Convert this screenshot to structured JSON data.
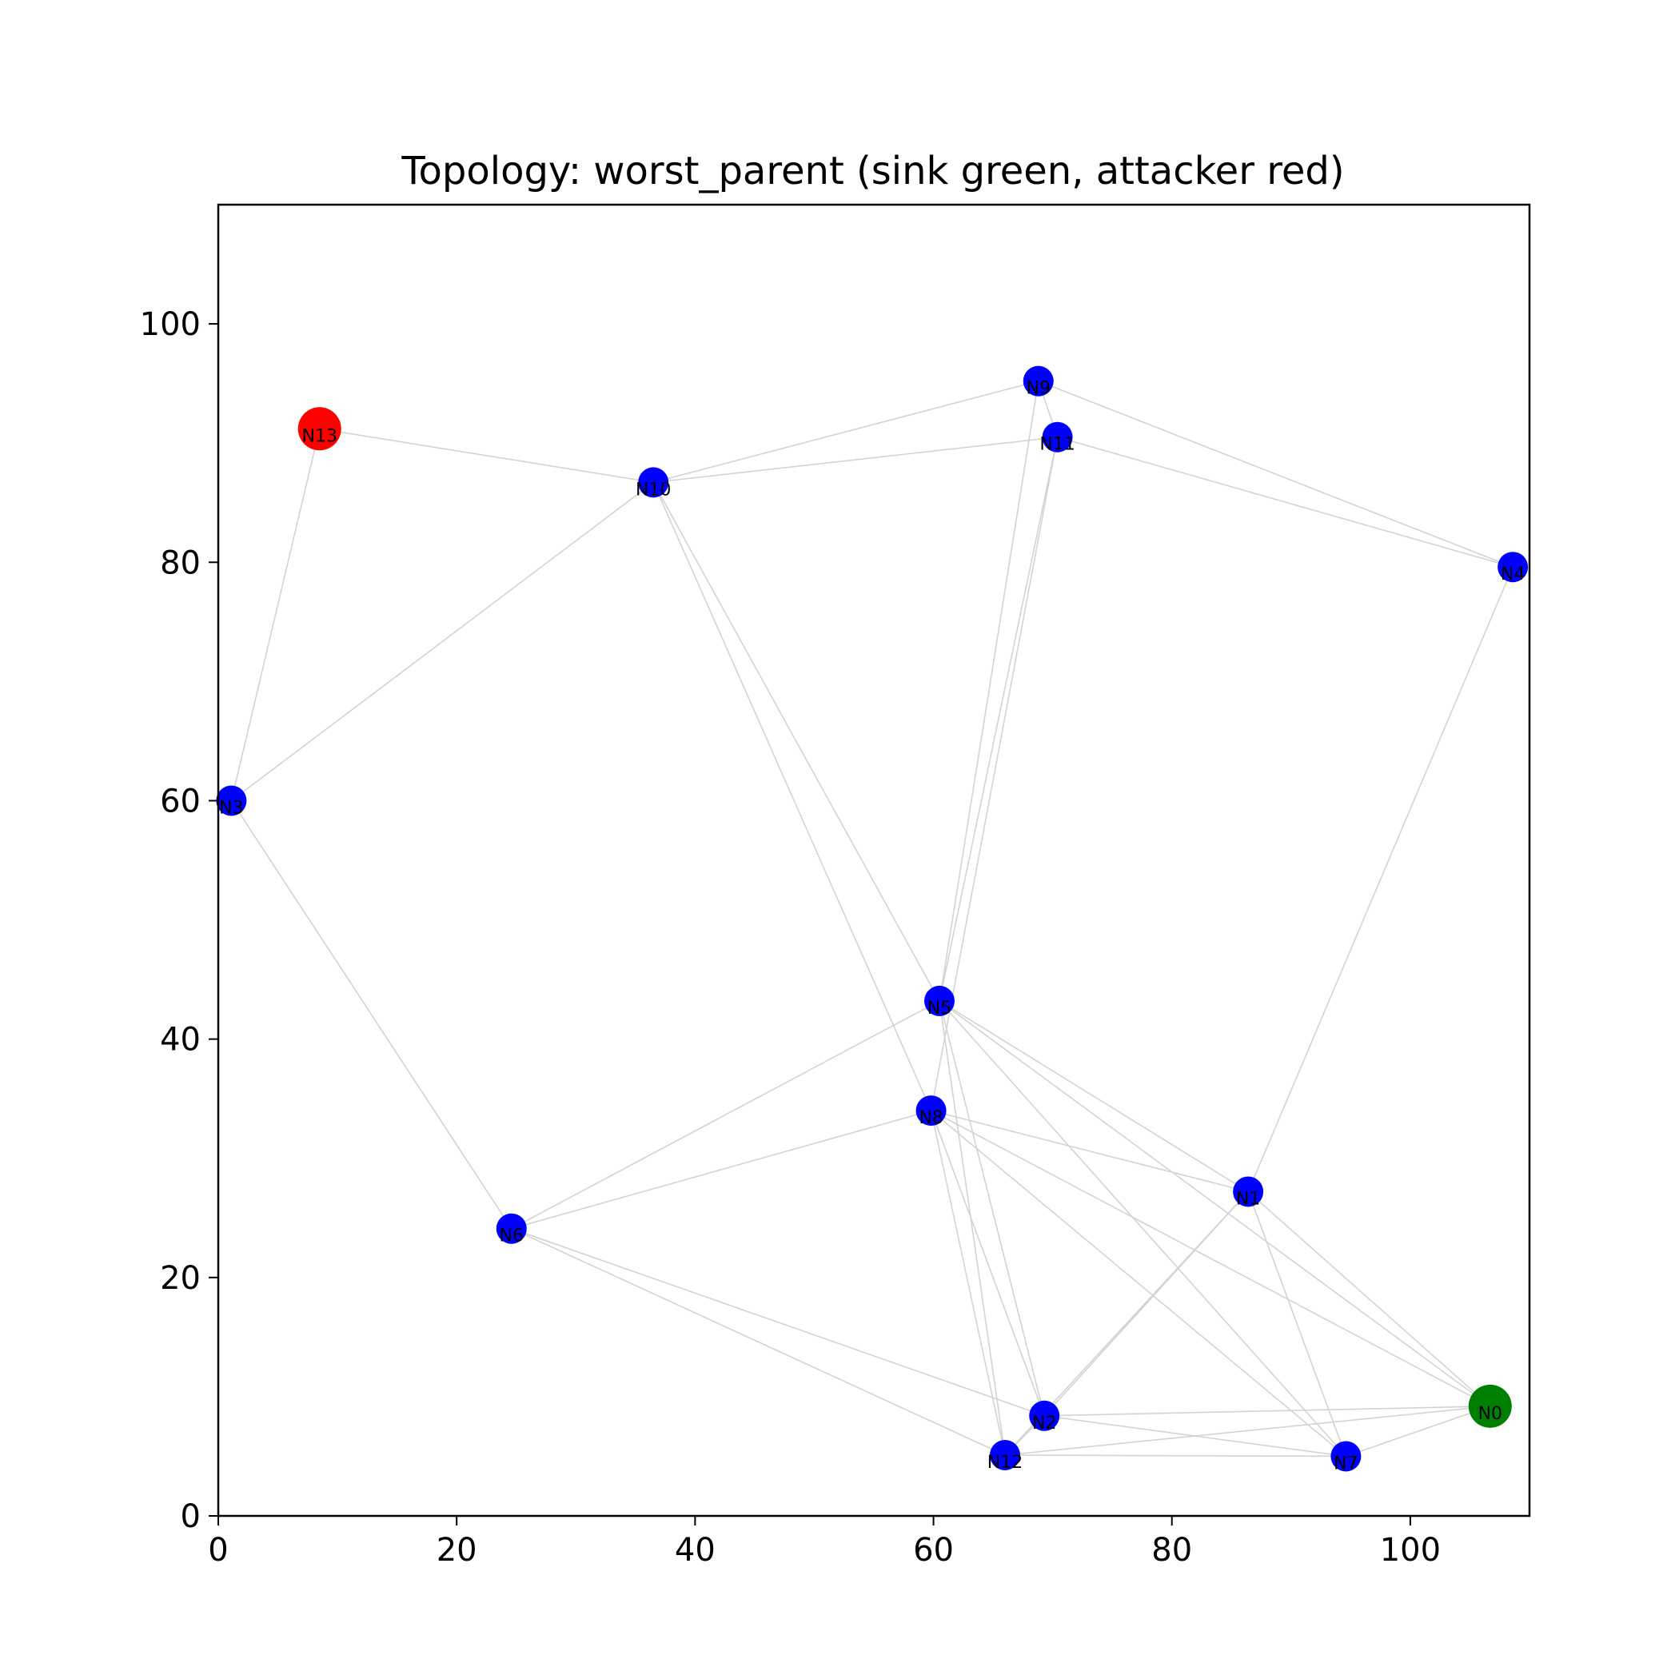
{
  "chart_data": {
    "type": "scatter",
    "title": "Topology: worst_parent (sink green, attacker red)",
    "xlabel": "",
    "ylabel": "",
    "xlim": [
      0,
      110
    ],
    "ylim": [
      0,
      110
    ],
    "xticks": [
      0,
      20,
      40,
      60,
      80,
      100
    ],
    "yticks": [
      0,
      20,
      40,
      60,
      80,
      100
    ],
    "grid": false,
    "colors": {
      "sink": "#008000",
      "attacker": "#ff0000",
      "node": "#0000ff",
      "edge": "#d3d3d3"
    },
    "nodes": [
      {
        "id": "N0",
        "x": 106.7,
        "y": 9.2,
        "role": "sink"
      },
      {
        "id": "N1",
        "x": 86.4,
        "y": 27.2,
        "role": "node"
      },
      {
        "id": "N2",
        "x": 69.3,
        "y": 8.4,
        "role": "node"
      },
      {
        "id": "N3",
        "x": 1.1,
        "y": 60.0,
        "role": "node"
      },
      {
        "id": "N4",
        "x": 108.6,
        "y": 79.6,
        "role": "node"
      },
      {
        "id": "N5",
        "x": 60.5,
        "y": 43.2,
        "role": "node"
      },
      {
        "id": "N6",
        "x": 24.6,
        "y": 24.1,
        "role": "node"
      },
      {
        "id": "N7",
        "x": 94.6,
        "y": 5.0,
        "role": "node"
      },
      {
        "id": "N8",
        "x": 59.8,
        "y": 34.0,
        "role": "node"
      },
      {
        "id": "N9",
        "x": 68.8,
        "y": 95.2,
        "role": "node"
      },
      {
        "id": "N10",
        "x": 36.5,
        "y": 86.7,
        "role": "node"
      },
      {
        "id": "N11",
        "x": 70.4,
        "y": 90.5,
        "role": "node"
      },
      {
        "id": "N12",
        "x": 66.0,
        "y": 5.1,
        "role": "node"
      },
      {
        "id": "N13",
        "x": 8.5,
        "y": 91.2,
        "role": "attacker"
      }
    ],
    "edges": [
      [
        "N13",
        "N10"
      ],
      [
        "N13",
        "N3"
      ],
      [
        "N3",
        "N10"
      ],
      [
        "N3",
        "N6"
      ],
      [
        "N10",
        "N9"
      ],
      [
        "N10",
        "N11"
      ],
      [
        "N10",
        "N5"
      ],
      [
        "N10",
        "N8"
      ],
      [
        "N9",
        "N11"
      ],
      [
        "N9",
        "N4"
      ],
      [
        "N9",
        "N5"
      ],
      [
        "N11",
        "N4"
      ],
      [
        "N11",
        "N5"
      ],
      [
        "N11",
        "N8"
      ],
      [
        "N4",
        "N1"
      ],
      [
        "N5",
        "N6"
      ],
      [
        "N5",
        "N1"
      ],
      [
        "N5",
        "N0"
      ],
      [
        "N5",
        "N7"
      ],
      [
        "N5",
        "N2"
      ],
      [
        "N5",
        "N12"
      ],
      [
        "N8",
        "N6"
      ],
      [
        "N8",
        "N1"
      ],
      [
        "N8",
        "N0"
      ],
      [
        "N8",
        "N7"
      ],
      [
        "N8",
        "N2"
      ],
      [
        "N8",
        "N12"
      ],
      [
        "N6",
        "N2"
      ],
      [
        "N6",
        "N12"
      ],
      [
        "N1",
        "N2"
      ],
      [
        "N1",
        "N12"
      ],
      [
        "N1",
        "N0"
      ],
      [
        "N1",
        "N7"
      ],
      [
        "N2",
        "N0"
      ],
      [
        "N2",
        "N7"
      ],
      [
        "N2",
        "N12"
      ],
      [
        "N12",
        "N0"
      ],
      [
        "N12",
        "N7"
      ],
      [
        "N7",
        "N0"
      ]
    ]
  }
}
